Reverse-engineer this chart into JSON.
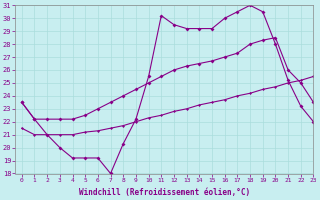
{
  "xlabel": "Windchill (Refroidissement éolien,°C)",
  "xlim": [
    -0.5,
    23
  ],
  "ylim": [
    18,
    31
  ],
  "yticks": [
    18,
    19,
    20,
    21,
    22,
    23,
    24,
    25,
    26,
    27,
    28,
    29,
    30,
    31
  ],
  "xticks": [
    0,
    1,
    2,
    3,
    4,
    5,
    6,
    7,
    8,
    9,
    10,
    11,
    12,
    13,
    14,
    15,
    16,
    17,
    18,
    19,
    20,
    21,
    22,
    23
  ],
  "background_color": "#c8eef0",
  "line_color": "#880088",
  "line1_x": [
    0,
    1,
    2,
    3,
    4,
    5,
    6,
    7,
    8,
    9,
    10,
    11,
    12,
    13,
    14,
    15,
    16,
    17,
    18,
    19,
    20,
    21,
    22,
    23
  ],
  "line1_y": [
    23.5,
    22.2,
    21.0,
    20.0,
    19.2,
    19.2,
    19.2,
    18.0,
    20.3,
    22.2,
    25.5,
    30.2,
    29.5,
    29.2,
    29.2,
    29.2,
    30.0,
    30.5,
    31.0,
    30.5,
    28.0,
    25.2,
    23.2,
    22.0
  ],
  "line2_x": [
    0,
    1,
    2,
    3,
    4,
    5,
    6,
    7,
    8,
    9,
    10,
    11,
    12,
    13,
    14,
    15,
    16,
    17,
    18,
    19,
    20,
    21,
    22,
    23
  ],
  "line2_y": [
    23.5,
    22.2,
    22.2,
    22.2,
    22.2,
    22.5,
    23.0,
    23.5,
    24.0,
    24.5,
    25.0,
    25.5,
    26.0,
    26.3,
    26.5,
    26.7,
    27.0,
    27.3,
    28.0,
    28.3,
    28.5,
    26.0,
    25.0,
    23.5
  ],
  "line3_x": [
    0,
    1,
    2,
    3,
    4,
    5,
    6,
    7,
    8,
    9,
    10,
    11,
    12,
    13,
    14,
    15,
    16,
    17,
    18,
    19,
    20,
    21,
    22,
    23
  ],
  "line3_y": [
    21.5,
    21.0,
    21.0,
    21.0,
    21.0,
    21.2,
    21.3,
    21.5,
    21.7,
    22.0,
    22.3,
    22.5,
    22.8,
    23.0,
    23.3,
    23.5,
    23.7,
    24.0,
    24.2,
    24.5,
    24.7,
    25.0,
    25.2,
    25.5
  ]
}
